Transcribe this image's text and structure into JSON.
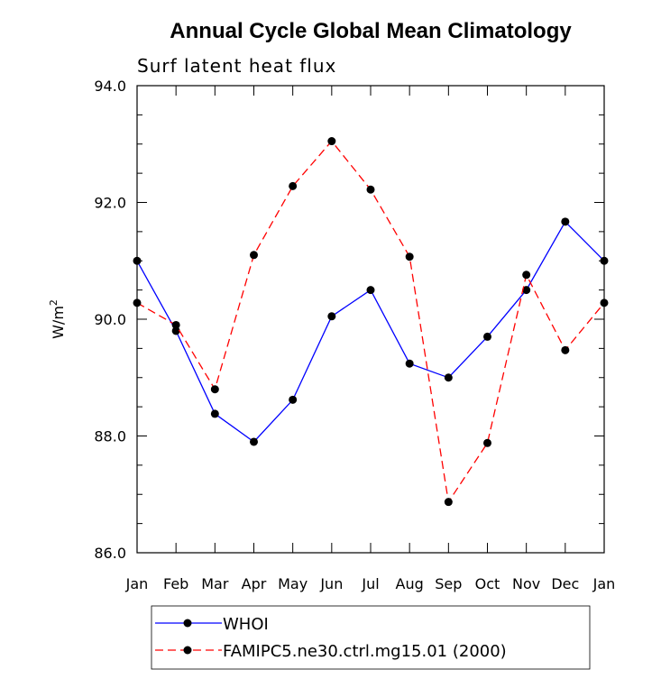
{
  "chart_data": {
    "type": "line",
    "title": "Annual Cycle Global Mean Climatology",
    "subtitle": "Surf latent heat flux",
    "xlabel": "",
    "ylabel": "W/m",
    "ylabel_superscript": "2",
    "categories": [
      "Jan",
      "Feb",
      "Mar",
      "Apr",
      "May",
      "Jun",
      "Jul",
      "Aug",
      "Sep",
      "Oct",
      "Nov",
      "Dec",
      "Jan"
    ],
    "ylim": [
      86.0,
      94.0
    ],
    "yticks": [
      86.0,
      88.0,
      90.0,
      92.0,
      94.0
    ],
    "ytick_labels": [
      "86.0",
      "88.0",
      "90.0",
      "92.0",
      "94.0"
    ],
    "grid": false,
    "legend_position": "bottom",
    "series": [
      {
        "name": "WHOI",
        "color": "#0000ff",
        "dash": "solid",
        "marker": "filled-circle",
        "values": [
          91.0,
          89.8,
          88.38,
          87.9,
          88.62,
          90.05,
          90.5,
          89.24,
          89.0,
          89.7,
          90.5,
          91.67,
          91.0
        ]
      },
      {
        "name": "FAMIPC5.ne30.ctrl.mg15.01 (2000)",
        "color": "#ff0000",
        "dash": "dashed",
        "marker": "filled-circle",
        "values": [
          90.28,
          89.9,
          88.8,
          91.1,
          92.28,
          93.05,
          92.22,
          91.07,
          86.87,
          87.88,
          90.76,
          89.47,
          90.28
        ]
      }
    ]
  }
}
